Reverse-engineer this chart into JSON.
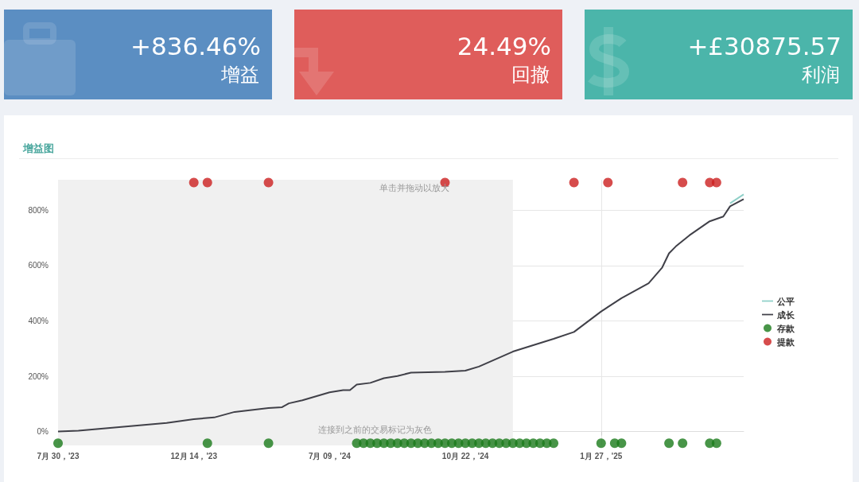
{
  "chart_data": [
    {
      "type": "other",
      "title": "增益",
      "annotations": [
        "+836.46%"
      ],
      "color": "#5b8ec2"
    },
    {
      "type": "other",
      "title": "回撤",
      "annotations": [
        "24.49%"
      ],
      "color": "#df5d5b"
    },
    {
      "type": "other",
      "title": "利润",
      "annotations": [
        "+£30875.57"
      ],
      "color": "#4bb5aa"
    },
    {
      "type": "line",
      "title": "增益图",
      "categories": [
        "7月 30，'23",
        null,
        null,
        null,
        null,
        null,
        null,
        null,
        null,
        null,
        null,
        null,
        null,
        null,
        null,
        null,
        null,
        null,
        null,
        null,
        "12月 14，'23",
        null,
        null,
        null,
        null,
        null,
        null,
        null,
        null,
        null,
        null,
        null,
        null,
        null,
        null,
        null,
        null,
        null,
        null,
        null,
        "7月 09，'24",
        null,
        null,
        null,
        null,
        null,
        null,
        null,
        null,
        null,
        null,
        null,
        null,
        null,
        null,
        null,
        null,
        null,
        null,
        null,
        "10月 22，'24",
        null,
        null,
        null,
        null,
        null,
        null,
        null,
        null,
        null,
        null,
        null,
        null,
        null,
        null,
        null,
        null,
        null,
        null,
        null,
        "1月 27，'25",
        null,
        null,
        null,
        null,
        null,
        null,
        null,
        null,
        null,
        null,
        null,
        null,
        null,
        null,
        null,
        null,
        null,
        null,
        null,
        null,
        null
      ],
      "ylim": [
        -50,
        910
      ],
      "yticks": [
        {
          "value": 0,
          "label": "0%"
        },
        {
          "value": 200,
          "label": "200%"
        },
        {
          "value": 400,
          "label": "400%"
        },
        {
          "value": 600,
          "label": "600%"
        },
        {
          "value": 800,
          "label": "800%"
        }
      ],
      "grid": true,
      "legend": "right",
      "annotations": [
        "单击并拖动以放大",
        "连接到之前的交易标记为灰色"
      ],
      "series": [
        {
          "name": "公平",
          "type": "line",
          "marker": "none",
          "color": "#8fd0c8",
          "values": [
            null,
            null,
            null,
            null,
            null,
            null,
            null,
            null,
            null,
            null,
            null,
            null,
            null,
            null,
            null,
            null,
            null,
            null,
            null,
            null,
            null,
            null,
            null,
            null,
            null,
            null,
            null,
            null,
            null,
            null,
            null,
            null,
            null,
            null,
            null,
            null,
            null,
            null,
            null,
            null,
            null,
            null,
            null,
            null,
            null,
            null,
            null,
            null,
            null,
            null,
            null,
            null,
            null,
            null,
            null,
            null,
            null,
            null,
            null,
            null,
            null,
            null,
            null,
            null,
            null,
            null,
            null,
            null,
            null,
            null,
            null,
            null,
            null,
            null,
            null,
            null,
            null,
            null,
            null,
            null,
            null,
            null,
            null,
            null,
            null,
            null,
            null,
            null,
            null,
            null,
            null,
            null,
            null,
            null,
            null,
            null,
            null,
            null,
            null,
            825,
            null,
            857
          ]
        },
        {
          "name": "成长",
          "type": "line",
          "marker": "none",
          "color": "#404048",
          "values": [
            0,
            null,
            null,
            3,
            null,
            null,
            null,
            null,
            null,
            null,
            null,
            null,
            null,
            null,
            null,
            null,
            31,
            null,
            null,
            null,
            45,
            null,
            null,
            51,
            null,
            null,
            71,
            null,
            null,
            79,
            null,
            85,
            null,
            88,
            102,
            null,
            113,
            null,
            null,
            null,
            142,
            null,
            150,
            150,
            170,
            null,
            176,
            null,
            193,
            null,
            201,
            null,
            213,
            null,
            null,
            null,
            null,
            216,
            null,
            null,
            220,
            null,
            235,
            null,
            null,
            null,
            null,
            289,
            null,
            null,
            null,
            null,
            null,
            335,
            null,
            null,
            360,
            null,
            null,
            null,
            434,
            null,
            null,
            482,
            null,
            null,
            null,
            536,
            null,
            593,
            644,
            669,
            null,
            709,
            null,
            null,
            760,
            null,
            777,
            814,
            null,
            840
          ]
        },
        {
          "name": "存款",
          "type": "scatter",
          "marker": "circle",
          "color": "#1a7a1a",
          "values": [
            -42,
            null,
            null,
            null,
            null,
            null,
            null,
            null,
            null,
            null,
            null,
            null,
            null,
            null,
            null,
            null,
            null,
            null,
            null,
            null,
            null,
            null,
            -42,
            null,
            null,
            null,
            null,
            null,
            null,
            null,
            null,
            -42,
            null,
            null,
            null,
            null,
            null,
            null,
            null,
            null,
            null,
            null,
            null,
            null,
            -42,
            -42,
            -42,
            -42,
            -42,
            -42,
            -42,
            -42,
            -42,
            -42,
            -42,
            -42,
            -42,
            -42,
            -42,
            -42,
            -42,
            -42,
            -42,
            -42,
            -42,
            -42,
            -42,
            -42,
            -42,
            -42,
            -42,
            -42,
            -42,
            -42,
            null,
            null,
            null,
            null,
            null,
            null,
            -42,
            null,
            -42,
            -42,
            null,
            null,
            null,
            null,
            null,
            null,
            -42,
            null,
            -42,
            null,
            null,
            null,
            -42,
            -42,
            null,
            null,
            null,
            null
          ]
        },
        {
          "name": "提款",
          "type": "scatter",
          "marker": "circle",
          "color": "#cc1f1f",
          "values": [
            null,
            null,
            null,
            null,
            null,
            null,
            null,
            null,
            null,
            null,
            null,
            null,
            null,
            null,
            null,
            null,
            null,
            null,
            null,
            null,
            900,
            null,
            900,
            null,
            null,
            null,
            null,
            null,
            null,
            null,
            null,
            900,
            null,
            null,
            null,
            null,
            null,
            null,
            null,
            null,
            null,
            null,
            null,
            null,
            null,
            null,
            null,
            null,
            null,
            null,
            null,
            null,
            null,
            null,
            null,
            null,
            null,
            900,
            null,
            null,
            null,
            null,
            null,
            null,
            null,
            null,
            null,
            null,
            null,
            null,
            null,
            null,
            null,
            null,
            null,
            null,
            900,
            null,
            null,
            null,
            null,
            900,
            null,
            null,
            null,
            null,
            null,
            null,
            null,
            null,
            null,
            null,
            900,
            null,
            null,
            null,
            900,
            900,
            null,
            null,
            null,
            null
          ]
        }
      ]
    }
  ]
}
